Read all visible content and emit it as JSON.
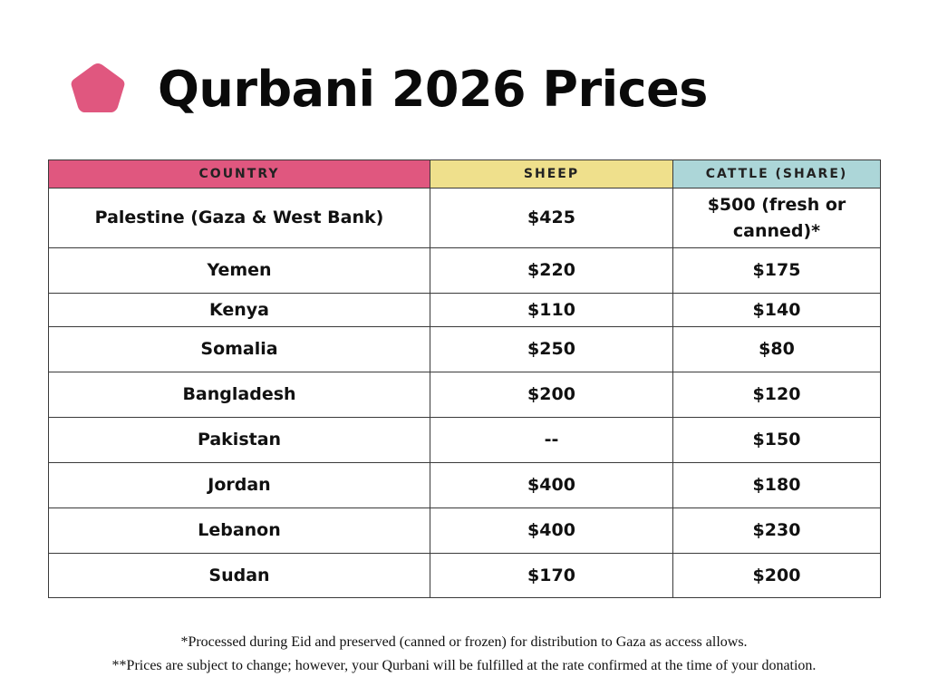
{
  "title": "Qurbani 2026 Prices",
  "colors": {
    "logo": "#e0577f",
    "country_header": "#e0577f",
    "sheep_header": "#efe08c",
    "cattle_header": "#acd6d8"
  },
  "table": {
    "headers": [
      "COUNTRY",
      "SHEEP",
      "CATTLE (SHARE)"
    ],
    "rows": [
      [
        "Palestine (Gaza & West Bank)",
        "$425",
        "$500 (fresh or canned)*"
      ],
      [
        "Yemen",
        "$220",
        "$175"
      ],
      [
        "Kenya",
        "$110",
        "$140"
      ],
      [
        "Somalia",
        "$250",
        "$80"
      ],
      [
        "Bangladesh",
        "$200",
        "$120"
      ],
      [
        "Pakistan",
        "--",
        "$150"
      ],
      [
        "Jordan",
        "$400",
        "$180"
      ],
      [
        "Lebanon",
        "$400",
        "$230"
      ],
      [
        "Sudan",
        "$170",
        "$200"
      ]
    ]
  },
  "footnotes": [
    "*Processed during Eid and preserved (canned or frozen) for distribution to Gaza as access allows.",
    "**Prices are subject to change; however, your Qurbani will be fulfilled at the rate confirmed at the time of your donation."
  ]
}
